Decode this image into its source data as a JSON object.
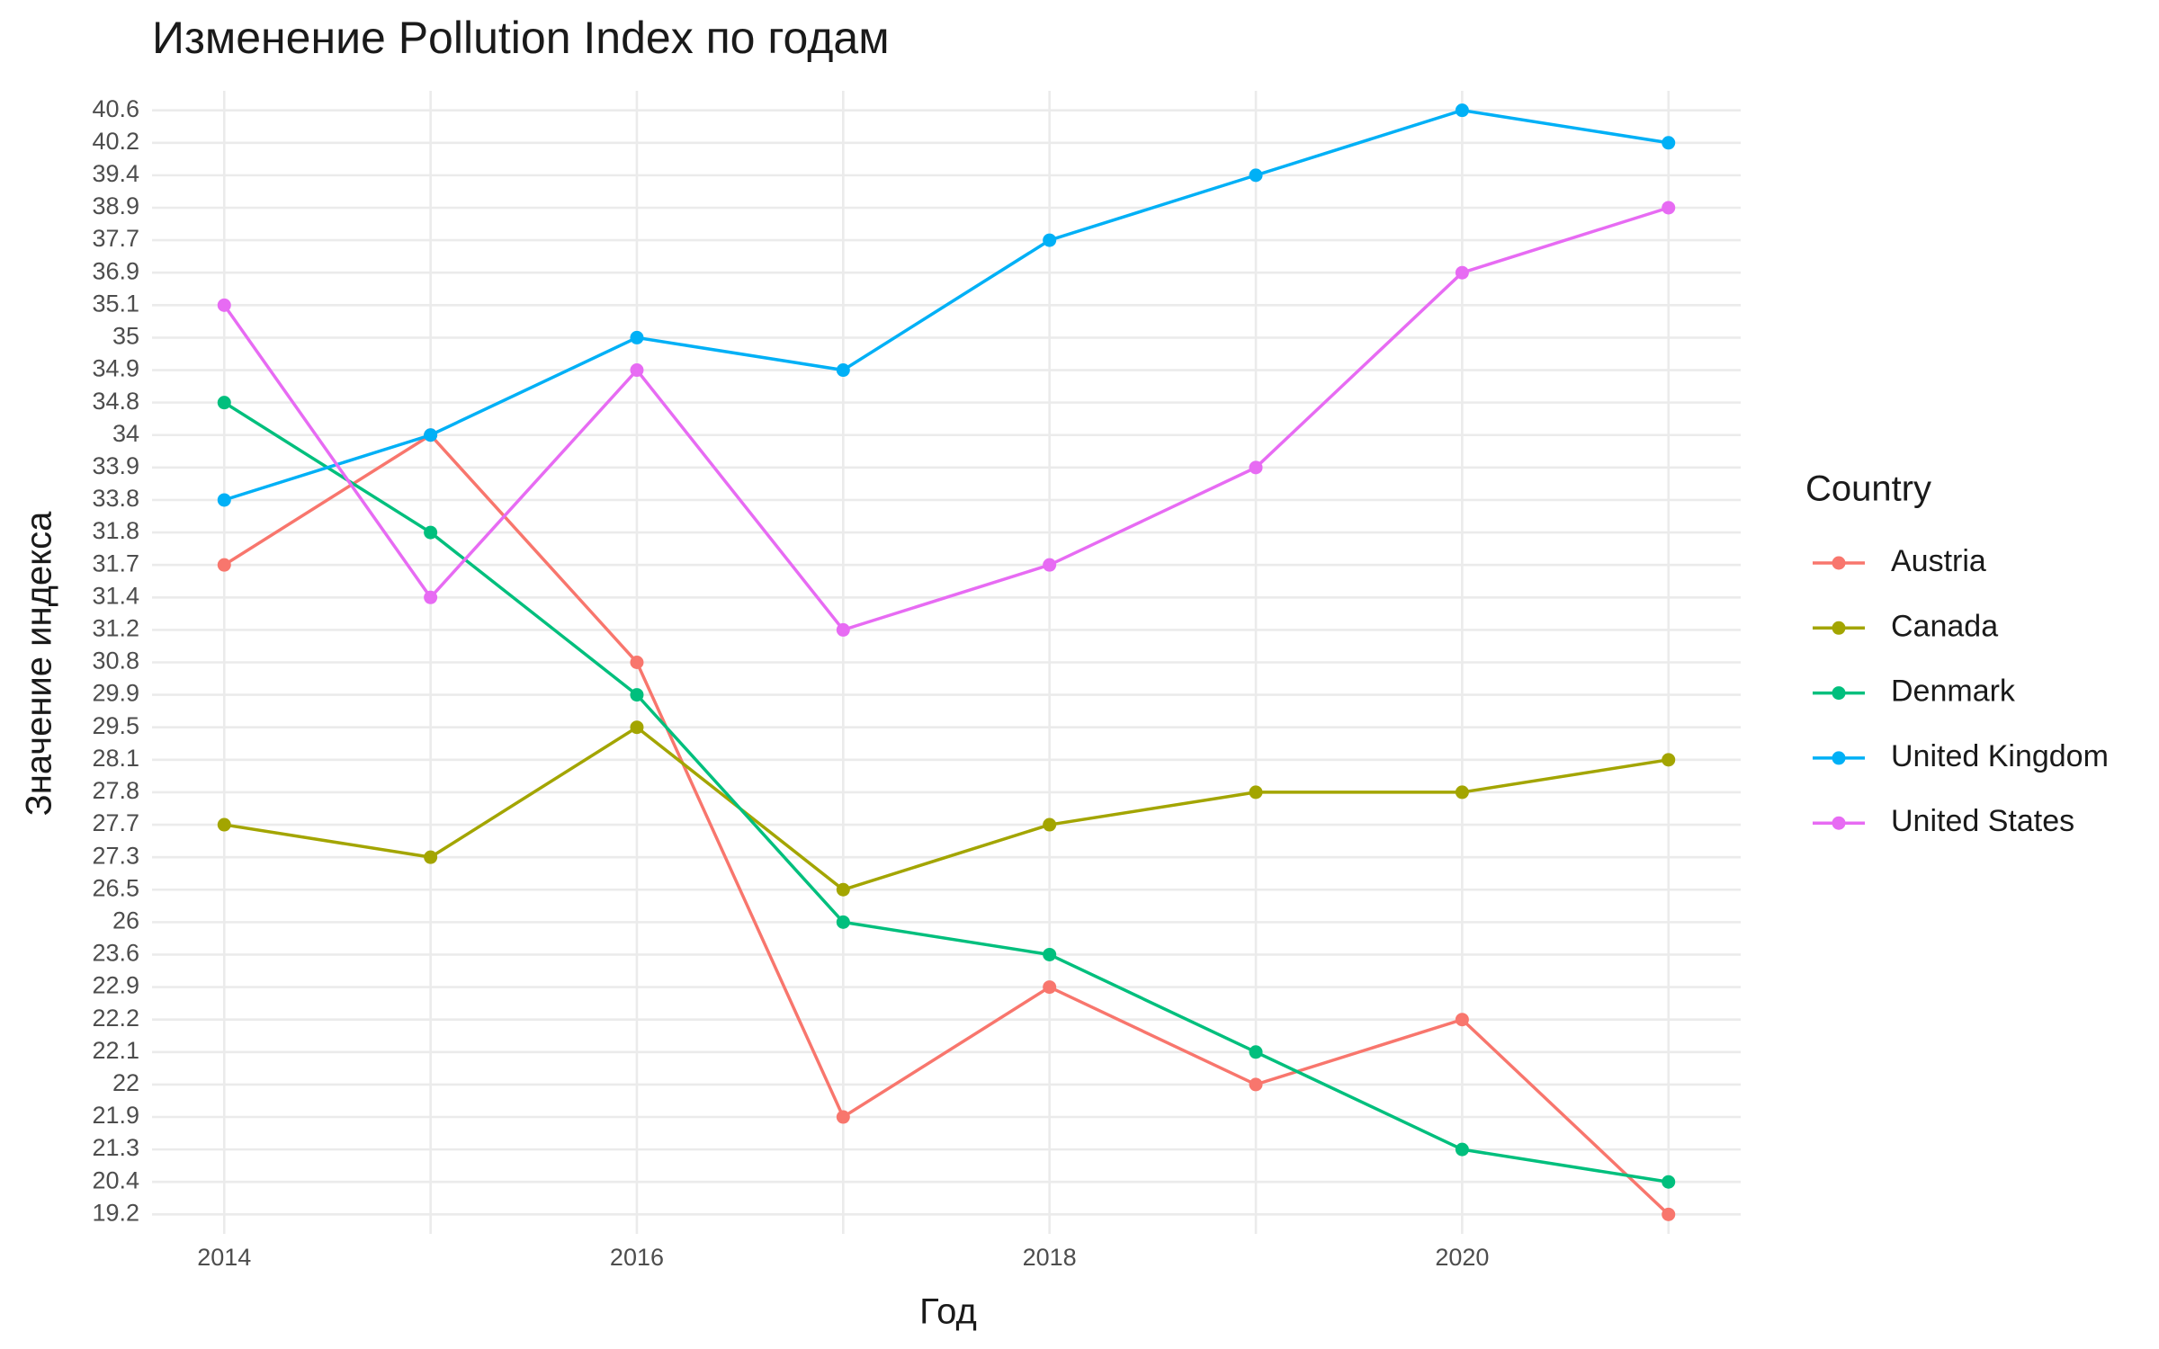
{
  "chart_data": {
    "type": "line",
    "title": "Изменение Pollution Index по годам",
    "x_label": "Год",
    "y_label": "Значение индекса",
    "legend_title": "Country",
    "legend_position": "right",
    "grid": true,
    "y_scale": "discrete",
    "x": [
      2014,
      2015,
      2016,
      2017,
      2018,
      2019,
      2020,
      2021
    ],
    "xlim": [
      2013.65,
      2021.35
    ],
    "xticks": [
      2014,
      2016,
      2018,
      2020
    ],
    "yticks": [
      19.2,
      20.4,
      21.3,
      21.9,
      22,
      22.1,
      22.2,
      22.9,
      23.6,
      26,
      26.5,
      27.3,
      27.7,
      27.8,
      28.1,
      29.5,
      29.9,
      30.8,
      31.2,
      31.4,
      31.7,
      31.8,
      33.8,
      33.9,
      34,
      34.8,
      34.9,
      35,
      35.1,
      36.9,
      37.7,
      38.9,
      39.4,
      40.2,
      40.6
    ],
    "series": [
      {
        "name": "Austria",
        "color": "#F8766D",
        "values": [
          31.7,
          34,
          30.8,
          21.9,
          22.9,
          22,
          22.2,
          19.2
        ]
      },
      {
        "name": "Canada",
        "color": "#A3A500",
        "values": [
          27.7,
          27.3,
          29.5,
          26.5,
          27.7,
          27.8,
          27.8,
          28.1
        ]
      },
      {
        "name": "Denmark",
        "color": "#00BF7D",
        "values": [
          34.8,
          31.8,
          29.9,
          26,
          23.6,
          22.1,
          21.3,
          20.4
        ]
      },
      {
        "name": "United Kingdom",
        "color": "#00B0F6",
        "values": [
          33.8,
          34,
          35,
          34.9,
          37.7,
          39.4,
          40.6,
          40.2
        ]
      },
      {
        "name": "United States",
        "color": "#E76BF3",
        "values": [
          35.1,
          31.4,
          34.9,
          31.2,
          31.7,
          33.9,
          36.9,
          38.9
        ]
      }
    ]
  }
}
